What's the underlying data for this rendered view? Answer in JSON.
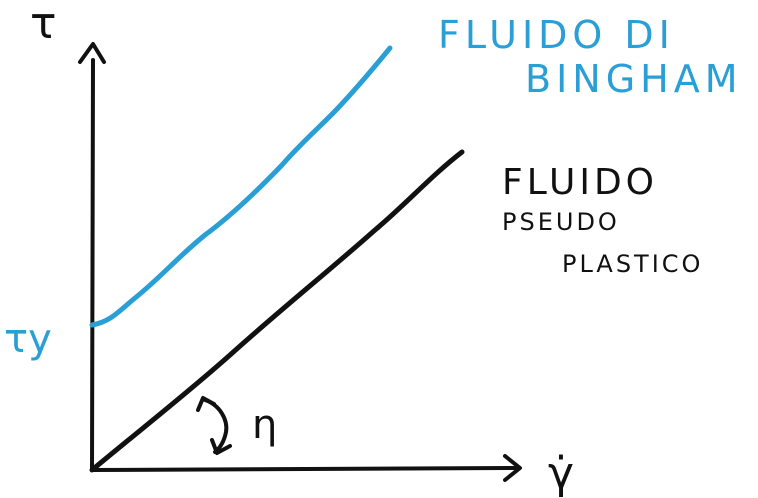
{
  "colors": {
    "bingham": "#2a9fd6",
    "pseudoplastic": "#111111",
    "axes": "#111111"
  },
  "axes": {
    "y_label": "τ",
    "x_label": "γ̇"
  },
  "labels": {
    "yield_stress": "τy",
    "viscosity": "η",
    "bingham_line1": "FLUIDO DI",
    "bingham_line2": "BINGHAM",
    "pseudo_line1": "FLUIDO",
    "pseudo_line2": "PSEUDO",
    "pseudo_line3": "PLASTICO"
  }
}
